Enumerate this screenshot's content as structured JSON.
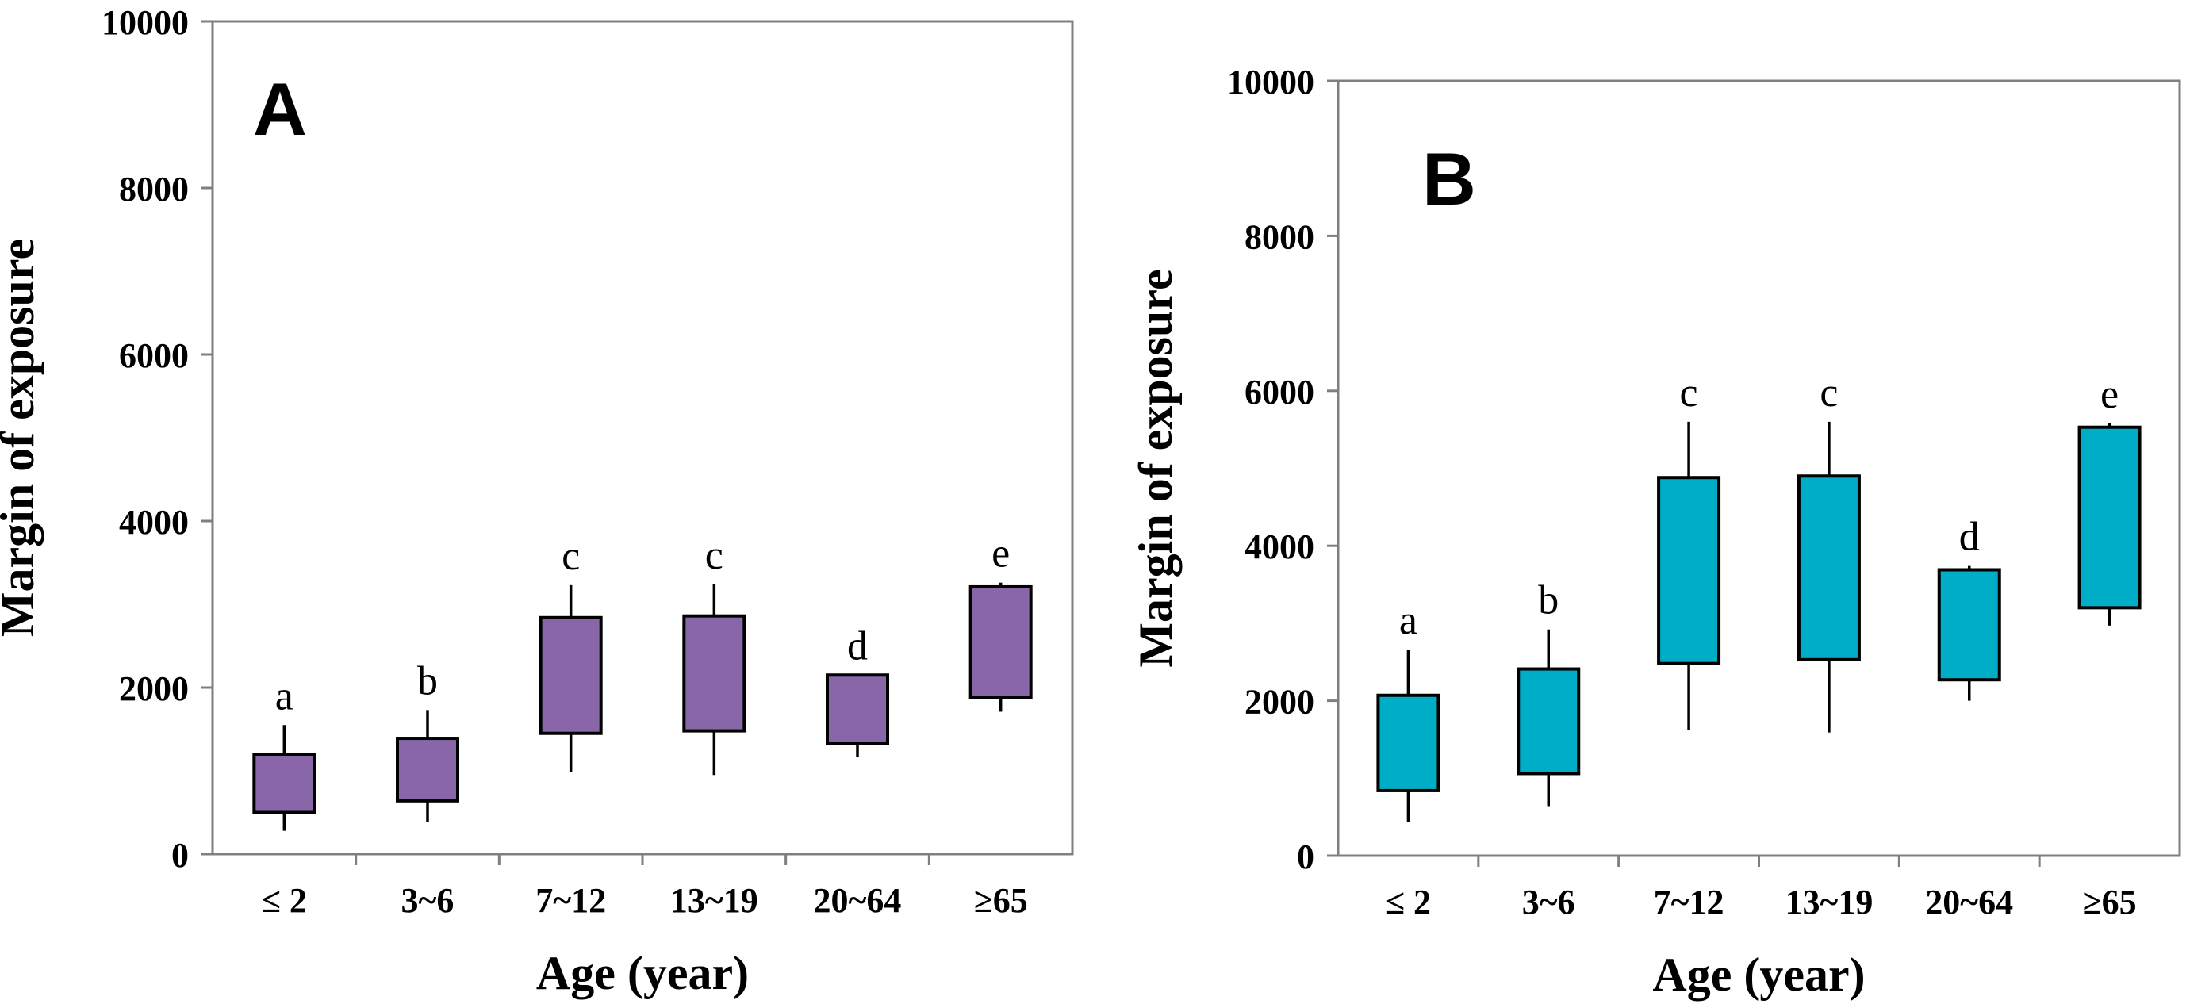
{
  "figure_title": "",
  "chart_data": [
    {
      "type": "box",
      "panel_label": "A",
      "xlabel": "Age (year)",
      "ylabel": "Margin of exposure",
      "ylim": [
        0,
        10000
      ],
      "yticks": [
        0,
        2000,
        4000,
        6000,
        8000,
        10000
      ],
      "grid": "off",
      "legend": "none",
      "box_color": "#8966A8",
      "frame_color": "#7F7F7F",
      "whisker_caps": false,
      "categories": [
        "≤ 2",
        "3~6",
        "7~12",
        "13~19",
        "20~64",
        "≥65"
      ],
      "boxes": [
        {
          "category": "≤ 2",
          "letter": "a",
          "whisker_low": 280,
          "q1": 500,
          "q3": 1200,
          "whisker_high": 1550
        },
        {
          "category": "3~6",
          "letter": "b",
          "whisker_low": 390,
          "q1": 640,
          "q3": 1390,
          "whisker_high": 1730
        },
        {
          "category": "7~12",
          "letter": "c",
          "whisker_low": 990,
          "q1": 1450,
          "q3": 2840,
          "whisker_high": 3230
        },
        {
          "category": "13~19",
          "letter": "c",
          "whisker_low": 950,
          "q1": 1480,
          "q3": 2860,
          "whisker_high": 3240
        },
        {
          "category": "20~64",
          "letter": "d",
          "whisker_low": 1170,
          "q1": 1330,
          "q3": 2150,
          "whisker_high": 2150
        },
        {
          "category": "≥65",
          "letter": "e",
          "whisker_low": 1710,
          "q1": 1880,
          "q3": 3210,
          "whisker_high": 3260
        }
      ]
    },
    {
      "type": "box",
      "panel_label": "B",
      "xlabel": "Age (year)",
      "ylabel": "Margin of exposure",
      "ylim": [
        0,
        10000
      ],
      "yticks": [
        0,
        2000,
        4000,
        6000,
        8000,
        10000
      ],
      "grid": "off",
      "legend": "none",
      "box_color": "#00ADC6",
      "frame_color": "#7F7F7F",
      "whisker_caps": false,
      "categories": [
        "≤ 2",
        "3~6",
        "7~12",
        "13~19",
        "20~64",
        "≥65"
      ],
      "boxes": [
        {
          "category": "≤ 2",
          "letter": "a",
          "whisker_low": 440,
          "q1": 840,
          "q3": 2070,
          "whisker_high": 2660
        },
        {
          "category": "3~6",
          "letter": "b",
          "whisker_low": 640,
          "q1": 1060,
          "q3": 2410,
          "whisker_high": 2920
        },
        {
          "category": "7~12",
          "letter": "c",
          "whisker_low": 1620,
          "q1": 2480,
          "q3": 4880,
          "whisker_high": 5600
        },
        {
          "category": "13~19",
          "letter": "c",
          "whisker_low": 1590,
          "q1": 2530,
          "q3": 4900,
          "whisker_high": 5600
        },
        {
          "category": "20~64",
          "letter": "d",
          "whisker_low": 2000,
          "q1": 2270,
          "q3": 3690,
          "whisker_high": 3740
        },
        {
          "category": "≥65",
          "letter": "e",
          "whisker_low": 2970,
          "q1": 3200,
          "q3": 5530,
          "whisker_high": 5580
        }
      ]
    }
  ]
}
